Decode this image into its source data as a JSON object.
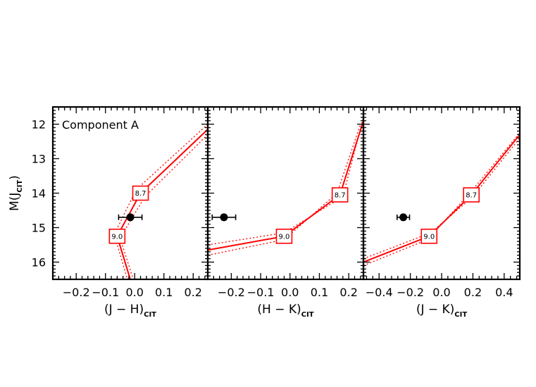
{
  "chart_data": [
    {
      "type": "line",
      "panel": "J-H",
      "xlabel_main": "(J − H)",
      "xlabel_sub": "CIT",
      "ylabel_main": "M(J",
      "ylabel_sub": "CIT",
      "ylabel_close": ")",
      "annotation": "Component A",
      "xlim": [
        -0.28,
        0.25
      ],
      "ylim": [
        16.5,
        11.5
      ],
      "xticks": [
        -0.2,
        -0.1,
        0.0,
        0.1,
        0.2
      ],
      "xticklabels": [
        "−0.2",
        "−0.1",
        "0.0",
        "0.1",
        "0.2"
      ],
      "yticks": [
        12,
        13,
        14,
        15,
        16
      ],
      "yticklabels": [
        "12",
        "13",
        "14",
        "15",
        "16"
      ],
      "series": [
        {
          "style": "solid",
          "x": [
            0.25,
            0.02,
            -0.06,
            -0.015
          ],
          "y": [
            12.15,
            14.0,
            15.25,
            16.5
          ]
        },
        {
          "style": "dotted",
          "x": [
            0.25,
            0.035,
            -0.05,
            -0.005
          ],
          "y": [
            12.3,
            14.1,
            15.3,
            16.5
          ]
        },
        {
          "style": "dotted",
          "x": [
            0.25,
            0.005,
            -0.07,
            -0.025
          ],
          "y": [
            12.0,
            13.9,
            15.2,
            16.5
          ]
        }
      ],
      "mass_labels": [
        {
          "text": "8.7",
          "x": 0.02,
          "y": 14.0
        },
        {
          "text": "9.0",
          "x": -0.06,
          "y": 15.25
        }
      ],
      "observed": {
        "x": -0.015,
        "y": 14.7,
        "xerr": 0.04
      }
    },
    {
      "type": "line",
      "panel": "H-K",
      "xlabel_main": "(H − K)",
      "xlabel_sub": "CIT",
      "xlim": [
        -0.28,
        0.25
      ],
      "ylim": [
        16.5,
        11.5
      ],
      "xticks": [
        -0.2,
        -0.1,
        0.0,
        0.1,
        0.2
      ],
      "xticklabels": [
        "−0.2",
        "−0.1",
        "0.0",
        "0.1",
        "0.2"
      ],
      "yticks": [
        12,
        13,
        14,
        15,
        16
      ],
      "series": [
        {
          "style": "solid",
          "x": [
            -0.28,
            -0.02,
            0.17,
            0.25
          ],
          "y": [
            15.65,
            15.25,
            14.05,
            11.9
          ]
        },
        {
          "style": "dotted",
          "x": [
            -0.28,
            -0.02,
            0.18,
            0.25
          ],
          "y": [
            15.5,
            15.15,
            14.1,
            11.8
          ]
        },
        {
          "style": "dotted",
          "x": [
            -0.28,
            -0.02,
            0.16,
            0.24
          ],
          "y": [
            15.8,
            15.35,
            14.0,
            12.0
          ]
        }
      ],
      "mass_labels": [
        {
          "text": "8.7",
          "x": 0.17,
          "y": 14.05
        },
        {
          "text": "9.0",
          "x": -0.02,
          "y": 15.25
        }
      ],
      "observed": {
        "x": -0.225,
        "y": 14.7,
        "xerr": 0.04
      }
    },
    {
      "type": "line",
      "panel": "J-K",
      "xlabel_main": "(J − K)",
      "xlabel_sub": "CIT",
      "xlim": [
        -0.5,
        0.5
      ],
      "ylim": [
        16.5,
        11.5
      ],
      "xticks": [
        -0.4,
        -0.2,
        0.0,
        0.2,
        0.4
      ],
      "xticklabels": [
        "−0.4",
        "−0.2",
        "0.0",
        "0.2",
        "0.4"
      ],
      "yticks": [
        12,
        13,
        14,
        15,
        16
      ],
      "series": [
        {
          "style": "solid",
          "x": [
            -0.5,
            -0.08,
            0.19,
            0.5
          ],
          "y": [
            16.0,
            15.25,
            14.05,
            12.3
          ]
        },
        {
          "style": "dotted",
          "x": [
            -0.5,
            -0.07,
            0.2,
            0.5
          ],
          "y": [
            15.9,
            15.15,
            14.1,
            12.4
          ]
        },
        {
          "style": "dotted",
          "x": [
            -0.5,
            -0.09,
            0.18,
            0.5
          ],
          "y": [
            16.1,
            15.35,
            14.0,
            12.25
          ]
        }
      ],
      "mass_labels": [
        {
          "text": "8.7",
          "x": 0.19,
          "y": 14.05
        },
        {
          "text": "9.0",
          "x": -0.08,
          "y": 15.25
        }
      ],
      "observed": {
        "x": -0.245,
        "y": 14.7,
        "xerr": 0.04
      }
    }
  ]
}
